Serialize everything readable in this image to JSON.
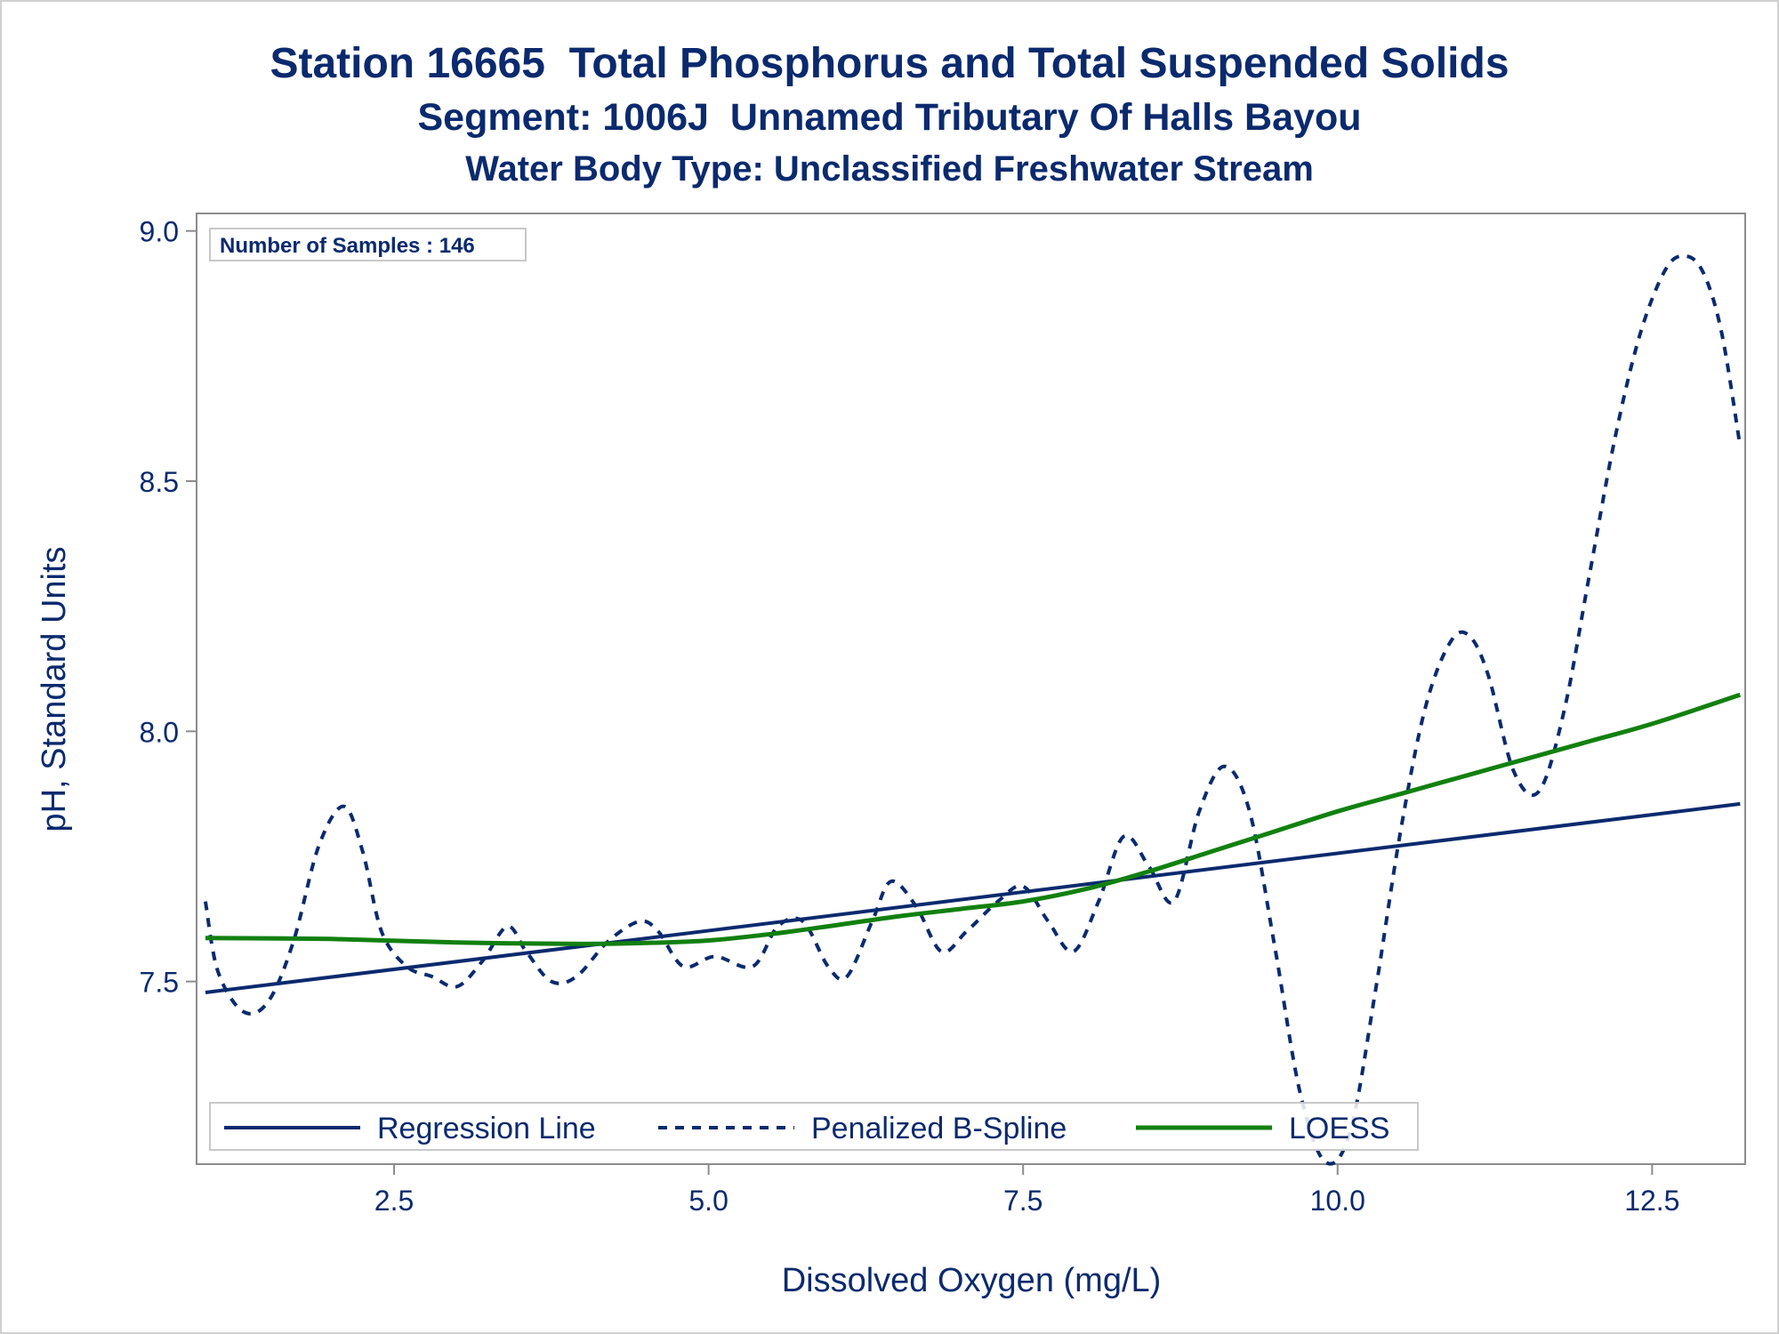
{
  "titles": {
    "line1": "Station 16665  Total Phosphorus and Total Suspended Solids",
    "line2": "Segment: 1006J  Unnamed Tributary Of Halls Bayou",
    "line3": "Water Body Type: Unclassified Freshwater Stream"
  },
  "colors": {
    "text": "#0b2a6e",
    "regression": "#0b2a6e",
    "spline": "#0b2a6e",
    "loess": "#12800f",
    "axis": "#8c8c8c"
  },
  "chart_data": {
    "type": "line",
    "xlabel": "Dissolved Oxygen (mg/L)",
    "ylabel": "pH, Standard Units",
    "xlim": [
      0.93,
      13.24
    ],
    "ylim": [
      7.135,
      9.035
    ],
    "xticks": [
      2.5,
      5.0,
      7.5,
      10.0,
      12.5
    ],
    "xtick_labels": [
      "2.5",
      "5.0",
      "7.5",
      "10.0",
      "12.5"
    ],
    "yticks": [
      7.5,
      8.0,
      8.5,
      9.0
    ],
    "ytick_labels": [
      "7.5",
      "8.0",
      "8.5",
      "9.0"
    ],
    "grid": false,
    "inset_text": "Number of Samples : 146",
    "legend": {
      "placement": "bottom-inside",
      "items": [
        {
          "label": "Regression Line",
          "style": "solid",
          "series": 0
        },
        {
          "label": "Penalized B-Spline",
          "style": "dashed",
          "series": 1
        },
        {
          "label": "LOESS",
          "style": "solid",
          "series": 2
        }
      ]
    },
    "series": [
      {
        "name": "Regression Line",
        "x": [
          1.0,
          13.2
        ],
        "y": [
          7.478,
          7.855
        ]
      },
      {
        "name": "Penalized B-Spline",
        "x": [
          1.0,
          1.1,
          1.3,
          1.5,
          1.7,
          1.9,
          2.1,
          2.25,
          2.4,
          2.6,
          2.8,
          3.0,
          3.2,
          3.4,
          3.55,
          3.75,
          3.95,
          4.2,
          4.45,
          4.6,
          4.8,
          5.05,
          5.35,
          5.55,
          5.75,
          5.95,
          6.1,
          6.3,
          6.45,
          6.65,
          6.85,
          7.05,
          7.3,
          7.5,
          7.7,
          7.9,
          8.1,
          8.3,
          8.5,
          8.7,
          8.9,
          9.1,
          9.3,
          9.5,
          9.7,
          9.9,
          10.1,
          10.3,
          10.5,
          10.7,
          10.9,
          11.05,
          11.2,
          11.4,
          11.6,
          11.8,
          12.0,
          12.2,
          12.4,
          12.6,
          12.75,
          12.9,
          13.05,
          13.2
        ],
        "y": [
          7.66,
          7.52,
          7.44,
          7.46,
          7.58,
          7.77,
          7.85,
          7.76,
          7.6,
          7.53,
          7.51,
          7.49,
          7.54,
          7.61,
          7.56,
          7.5,
          7.51,
          7.58,
          7.62,
          7.6,
          7.53,
          7.55,
          7.53,
          7.61,
          7.62,
          7.53,
          7.51,
          7.62,
          7.7,
          7.65,
          7.56,
          7.6,
          7.66,
          7.69,
          7.62,
          7.56,
          7.66,
          7.79,
          7.73,
          7.66,
          7.84,
          7.93,
          7.84,
          7.57,
          7.28,
          7.14,
          7.2,
          7.48,
          7.8,
          8.05,
          8.18,
          8.19,
          8.11,
          7.92,
          7.88,
          8.04,
          8.31,
          8.58,
          8.79,
          8.92,
          8.95,
          8.92,
          8.8,
          8.57
        ]
      },
      {
        "name": "LOESS",
        "x": [
          1.0,
          2.0,
          3.0,
          4.0,
          4.5,
          5.0,
          5.5,
          6.0,
          6.5,
          7.0,
          7.5,
          8.0,
          8.5,
          9.0,
          9.5,
          10.0,
          10.5,
          11.0,
          11.5,
          12.0,
          12.5,
          13.2
        ],
        "y": [
          7.587,
          7.585,
          7.578,
          7.575,
          7.577,
          7.582,
          7.595,
          7.612,
          7.63,
          7.645,
          7.66,
          7.685,
          7.72,
          7.76,
          7.8,
          7.84,
          7.875,
          7.91,
          7.945,
          7.98,
          8.015,
          8.073
        ]
      }
    ]
  }
}
